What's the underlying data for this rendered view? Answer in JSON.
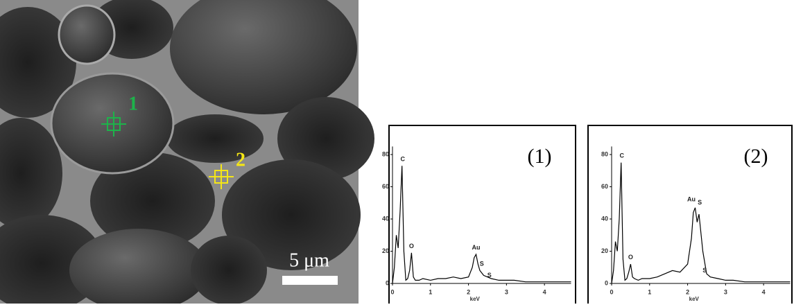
{
  "image": {
    "markers": [
      "1",
      "2"
    ],
    "scale_bar": "5 μm"
  },
  "chart_data": [
    {
      "type": "line",
      "title": "(1)",
      "x_label": "keV",
      "x": [
        0.0,
        0.05,
        0.1,
        0.15,
        0.2,
        0.25,
        0.3,
        0.35,
        0.4,
        0.45,
        0.5,
        0.55,
        0.6,
        0.7,
        0.8,
        1.0,
        1.2,
        1.4,
        1.6,
        1.8,
        2.0,
        2.1,
        2.15,
        2.2,
        2.25,
        2.3,
        2.4,
        2.5,
        2.6,
        2.8,
        3.0,
        3.2,
        3.5,
        3.8,
        4.0,
        4.3,
        4.7
      ],
      "series": [
        {
          "color": "#000000",
          "values": [
            0,
            10,
            30,
            22,
            45,
            73,
            20,
            2,
            3,
            8,
            19,
            4,
            2,
            2,
            3,
            2,
            3,
            3,
            4,
            3,
            4,
            10,
            16,
            18,
            12,
            8,
            5,
            4,
            3,
            2,
            2,
            2,
            1,
            1,
            1,
            1,
            1
          ]
        }
      ],
      "annotations": [
        {
          "text": "C",
          "x": 0.27,
          "y": 77
        },
        {
          "text": "O",
          "x": 0.5,
          "y": 23
        },
        {
          "text": "Au",
          "x": 2.2,
          "y": 22
        },
        {
          "text": "S",
          "x": 2.35,
          "y": 12
        },
        {
          "text": "S",
          "x": 2.55,
          "y": 5
        }
      ],
      "xlim": [
        0,
        4.7
      ],
      "ylim": [
        0,
        85
      ],
      "xticks": [
        0,
        1,
        2,
        3,
        4
      ],
      "yticks": [
        0,
        20,
        40,
        60,
        80
      ]
    },
    {
      "type": "line",
      "title": "(2)",
      "x_label": "keV",
      "x": [
        0.0,
        0.05,
        0.1,
        0.15,
        0.2,
        0.25,
        0.3,
        0.35,
        0.4,
        0.45,
        0.5,
        0.55,
        0.6,
        0.7,
        0.8,
        1.0,
        1.2,
        1.4,
        1.6,
        1.8,
        2.0,
        2.1,
        2.15,
        2.2,
        2.25,
        2.3,
        2.4,
        2.5,
        2.6,
        2.8,
        3.0,
        3.2,
        3.5,
        3.8,
        4.0,
        4.3,
        4.7
      ],
      "series": [
        {
          "color": "#000000",
          "values": [
            0,
            8,
            26,
            20,
            40,
            75,
            15,
            2,
            3,
            7,
            12,
            4,
            3,
            2,
            3,
            3,
            4,
            6,
            8,
            7,
            12,
            28,
            44,
            47,
            38,
            43,
            20,
            6,
            4,
            3,
            2,
            2,
            1,
            1,
            1,
            1,
            1
          ]
        }
      ],
      "annotations": [
        {
          "text": "C",
          "x": 0.27,
          "y": 79
        },
        {
          "text": "O",
          "x": 0.5,
          "y": 16
        },
        {
          "text": "Au",
          "x": 2.1,
          "y": 52
        },
        {
          "text": "S",
          "x": 2.32,
          "y": 50
        },
        {
          "text": "S",
          "x": 2.45,
          "y": 8
        }
      ],
      "xlim": [
        0,
        4.7
      ],
      "ylim": [
        0,
        85
      ],
      "xticks": [
        0,
        1,
        2,
        3,
        4
      ],
      "yticks": [
        0,
        20,
        40,
        60,
        80
      ]
    }
  ]
}
